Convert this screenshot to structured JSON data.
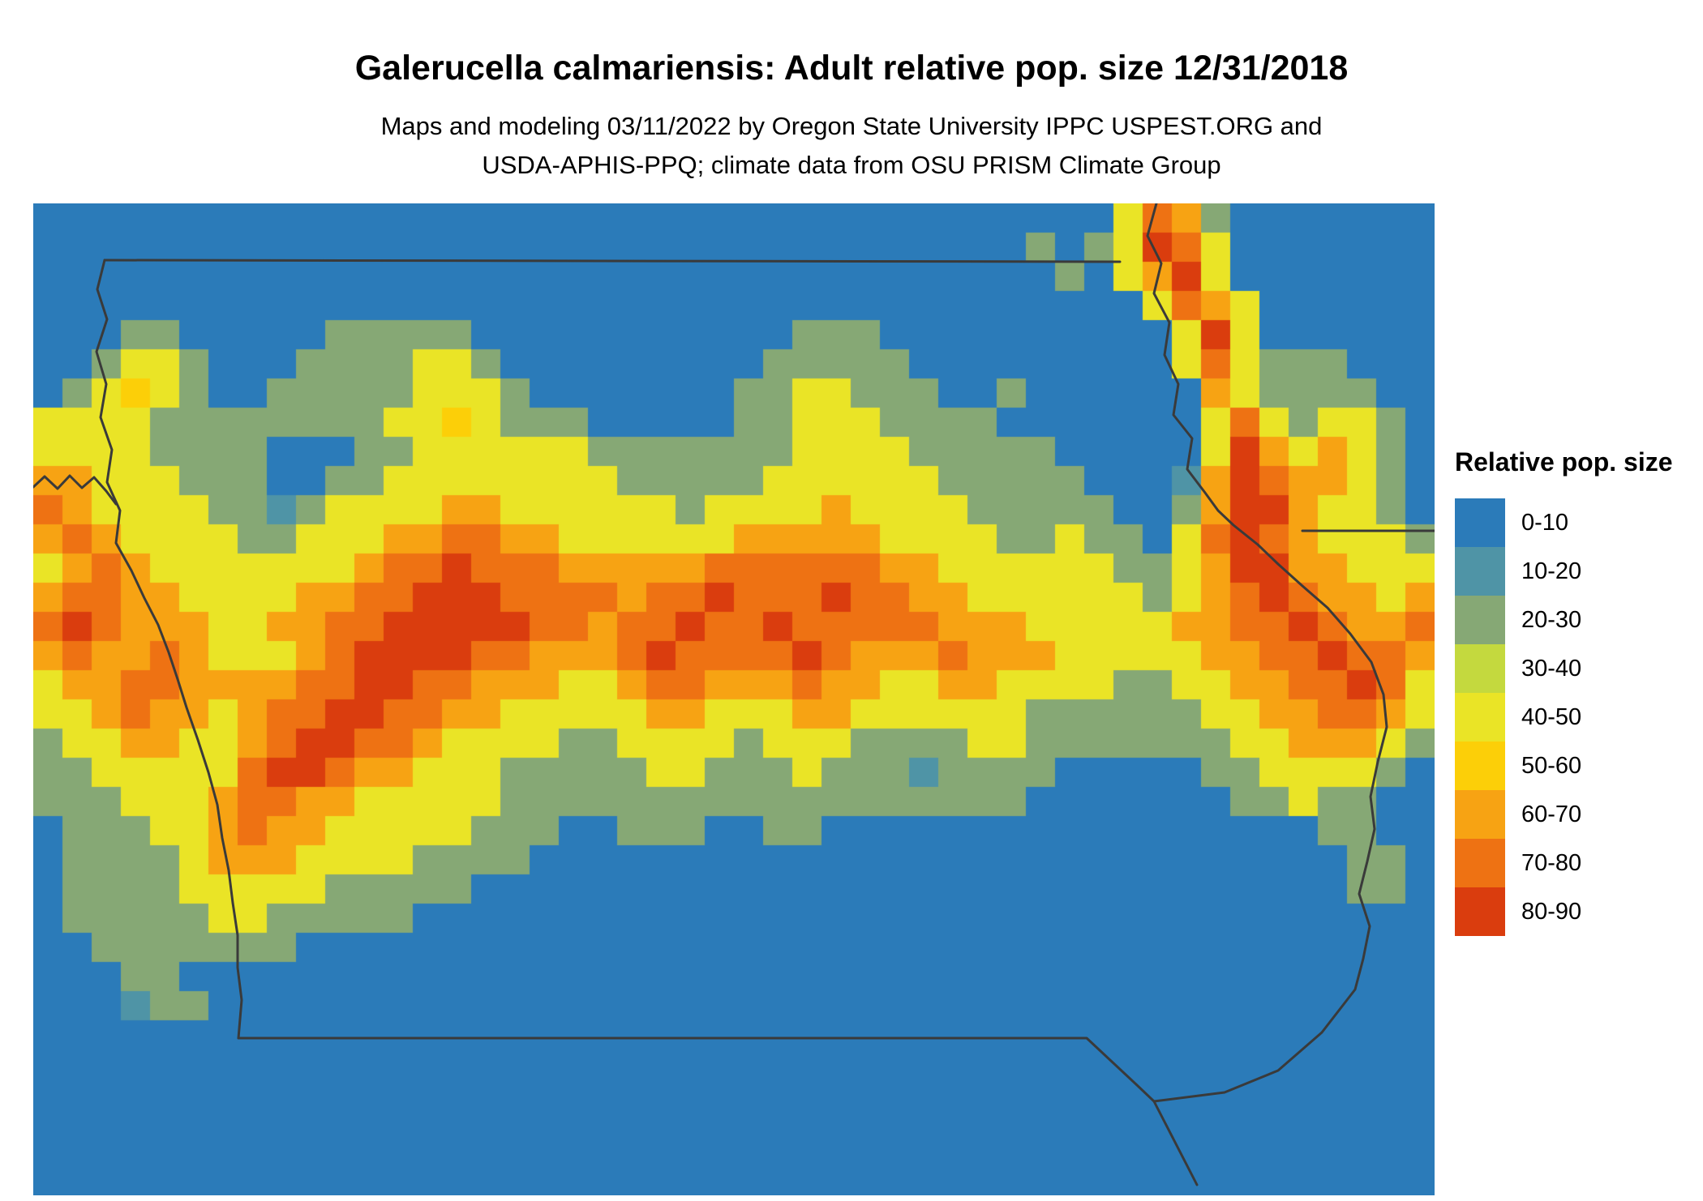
{
  "header": {
    "title": "Galerucella calmariensis: Adult relative pop. size 12/31/2018",
    "subtitle_line1": "Maps and modeling 03/11/2022 by Oregon State University IPPC USPEST.ORG and",
    "subtitle_line2": "USDA-APHIS-PPQ; climate data from OSU PRISM Climate Group"
  },
  "legend": {
    "title": "Relative pop. size",
    "entries": [
      {
        "label": "0-10",
        "color": "#2b7bb9"
      },
      {
        "label": "10-20",
        "color": "#4f94a6"
      },
      {
        "label": "20-30",
        "color": "#86a875"
      },
      {
        "label": "30-40",
        "color": "#c4d93e"
      },
      {
        "label": "40-50",
        "color": "#eae426"
      },
      {
        "label": "50-60",
        "color": "#fccf08"
      },
      {
        "label": "60-70",
        "color": "#f7a313"
      },
      {
        "label": "70-80",
        "color": "#ee7213"
      },
      {
        "label": "80-90",
        "color": "#da3d0e"
      }
    ]
  },
  "map": {
    "region": "Iowa and surrounding states",
    "border_color": "#3a3a3a",
    "grid": {
      "cols": 48,
      "rows": 34,
      "legend_class_by_digit": [
        "0-10",
        "10-20",
        "20-30",
        "30-40",
        "40-50",
        "50-60",
        "60-70",
        "70-80",
        "80-90"
      ],
      "cell_classes": [
        "000000000000000000000000000000000000047620000000",
        "000000000000000000000000000000000020248740000000",
        "000000000000000000000000000000000002046840000000",
        "000000000000000000000000000000000000004764000000",
        "000220000022222000000000002220000000000484000000",
        "002442000222244200000000022222000000000474222000",
        "024542002222244420000000224422200200000064222200",
        "444422222222445422200000224442222000000047424420",
        "444422220002244444422222224444222220000048646420",
        "664442220022444444442222244444422222000168766420",
        "764444221244446644444424444644442222200268864420",
        "676444422444667766444444666664444224220478764442",
        "467644444446778777666667777776644444422468866444",
        "677664444667788877776778777877664444442467876646",
        "787666446677888887767787787777766644444667787667",
        "676676444678888776667877778766676664444466778776",
        "466776666778877666446776667664466444422446677874",
        "446766467788776644444664446644444422222244667764",
        "244664467887764444224444244422224422222224466642",
        "224444478876644422222442224222122220000022444420",
        "222444677664444422222222222222222200000002242200",
        "022244676644444222002220022000000000000000002200",
        "022224666444422220000000000000000000000000000220",
        "022224444422222000000000000000000000000000000220",
        "022222442222200000000000000000000000000000000000",
        "002222222000000000000000000000000000000000000000",
        "000220000000000000000000000000000000000000000000",
        "000122000000000000000000000000000000000000000000",
        "000000000000000000000000000000000000000000000000",
        "000000000000000000000000000000000000000000000000",
        "000000000000000000000000000000000000000000000000",
        "000000000000000000000000000000000000000000000000",
        "000000000000000000000000000000000000000000000000",
        "000000000000000000000000000000000000000000000000"
      ]
    }
  }
}
